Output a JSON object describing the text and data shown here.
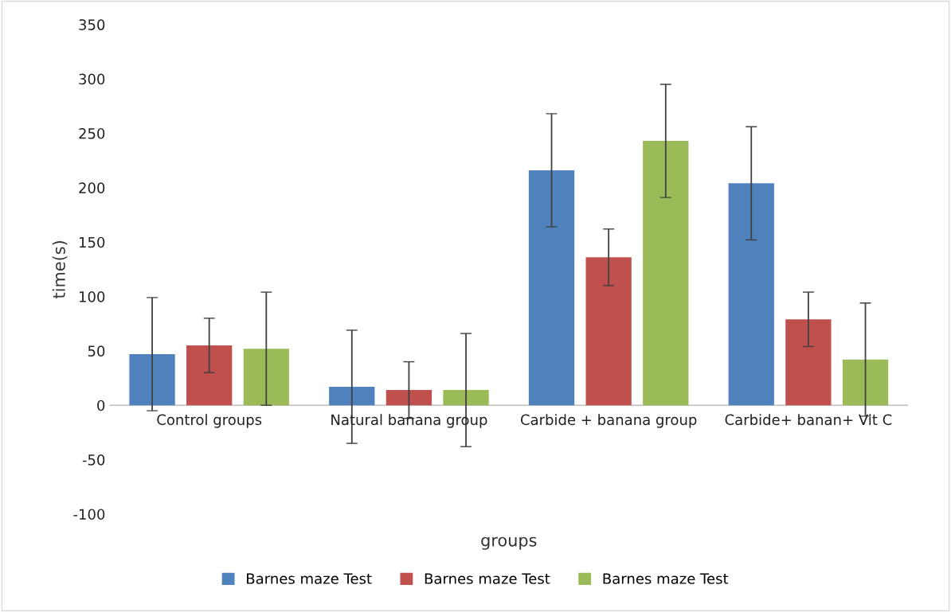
{
  "chart_data": {
    "type": "bar",
    "xlabel": "groups",
    "ylabel": "time(s)",
    "categories": [
      "Control groups",
      "Natural banana group",
      "Carbide + banana group",
      "Carbide+ banan+ Vit C"
    ],
    "series": [
      {
        "name": "Barnes maze Test",
        "color": "#4f81bd",
        "values": [
          47,
          17,
          216,
          204
        ],
        "errors": [
          52,
          52,
          52,
          52
        ]
      },
      {
        "name": "Barnes maze Test",
        "color": "#c0504d",
        "values": [
          55,
          14,
          136,
          79
        ],
        "errors": [
          25,
          26,
          26,
          25
        ]
      },
      {
        "name": "Barnes maze Test",
        "color": "#9bbb59",
        "values": [
          52,
          14,
          243,
          42
        ],
        "errors": [
          52,
          52,
          52,
          52
        ]
      }
    ],
    "ylim": [
      -100,
      350
    ],
    "yticks": [
      -100,
      -50,
      0,
      50,
      100,
      150,
      200,
      250,
      300,
      350
    ],
    "grid": false,
    "legend": "bottom"
  }
}
